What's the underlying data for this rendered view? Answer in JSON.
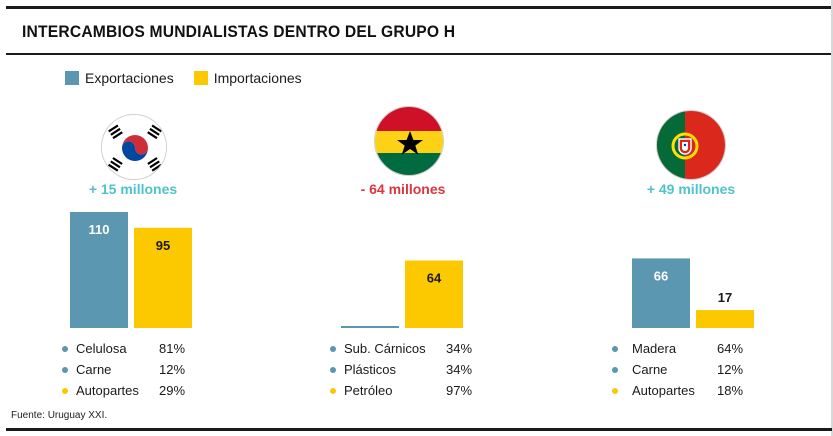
{
  "title": "INTERCAMBIOS MUNDIALISTAS DENTRO DEL GRUPO H",
  "colors": {
    "export": "#5b97b1",
    "import": "#fcc800",
    "positive": "#4fc3c7",
    "negative": "#d9363e"
  },
  "legend": {
    "export_label": "Exportaciones",
    "import_label": "Importaciones"
  },
  "countries": [
    {
      "flag": "south-korea-flag",
      "balance": "+ 15 millones",
      "products": [
        {
          "name": "Celulosa",
          "pct": "81%",
          "type": "export"
        },
        {
          "name": "Carne",
          "pct": "12%",
          "type": "export"
        },
        {
          "name": "Autopartes",
          "pct": "29%",
          "type": "import"
        }
      ]
    },
    {
      "flag": "ghana-flag",
      "balance": "- 64 millones",
      "products": [
        {
          "name": "Sub. Cárnicos",
          "pct": "34%",
          "type": "export"
        },
        {
          "name": "Plásticos",
          "pct": "34%",
          "type": "export"
        },
        {
          "name": "Petróleo",
          "pct": "97%",
          "type": "import"
        }
      ]
    },
    {
      "flag": "portugal-flag",
      "balance": "+ 49 millones",
      "products": [
        {
          "name": "Madera",
          "pct": "64%",
          "type": "export"
        },
        {
          "name": "Carne",
          "pct": "12%",
          "type": "export"
        },
        {
          "name": "Autopartes",
          "pct": "18%",
          "type": "import"
        }
      ]
    }
  ],
  "chart_data": {
    "type": "bar",
    "categories": [
      "Corea del Sur",
      "Ghana",
      "Portugal"
    ],
    "series": [
      {
        "name": "Exportaciones",
        "values": [
          110,
          0.5,
          66
        ],
        "labels": [
          "110",
          "",
          "66"
        ]
      },
      {
        "name": "Importaciones",
        "values": [
          95,
          64,
          17
        ],
        "labels": [
          "95",
          "64",
          "17"
        ]
      }
    ],
    "ylim": [
      0,
      110
    ]
  },
  "source": "Fuente: Uruguay XXI."
}
